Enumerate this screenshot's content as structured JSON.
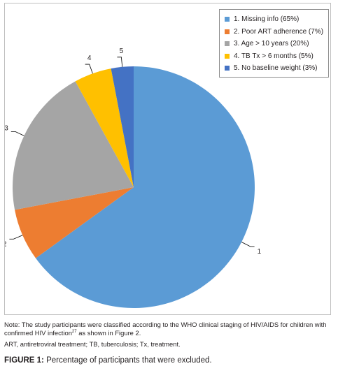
{
  "chart_data": {
    "type": "pie",
    "title": "",
    "categories": [
      "1. Missing info (65%)",
      "2. Poor ART adherence (7%)",
      "3. Age > 10 years (20%)",
      "4. TB Tx > 6 months (5%)",
      "5. No baseline weight (3%)"
    ],
    "slice_labels": [
      "1",
      "2",
      "3",
      "4",
      "5"
    ],
    "values": [
      65,
      7,
      20,
      5,
      3
    ],
    "colors": [
      "#5b9bd5",
      "#ed7d31",
      "#a5a5a5",
      "#ffc000",
      "#4472c4"
    ],
    "legend_position": "top-right",
    "start": "12 o'clock, clockwise"
  },
  "notes": {
    "line1_before_sup": "Note: The study participants were classified according to the WHO clinical staging of HIV/AIDS for children with confirmed HIV infection",
    "line1_sup": "27",
    "line1_after_sup": " as shown in Figure 2.",
    "line2": "ART, antiretroviral treatment; TB, tuberculosis; Tx, treatment."
  },
  "caption": {
    "label": "FIGURE 1:",
    "text": " Percentage of participants that were excluded."
  }
}
